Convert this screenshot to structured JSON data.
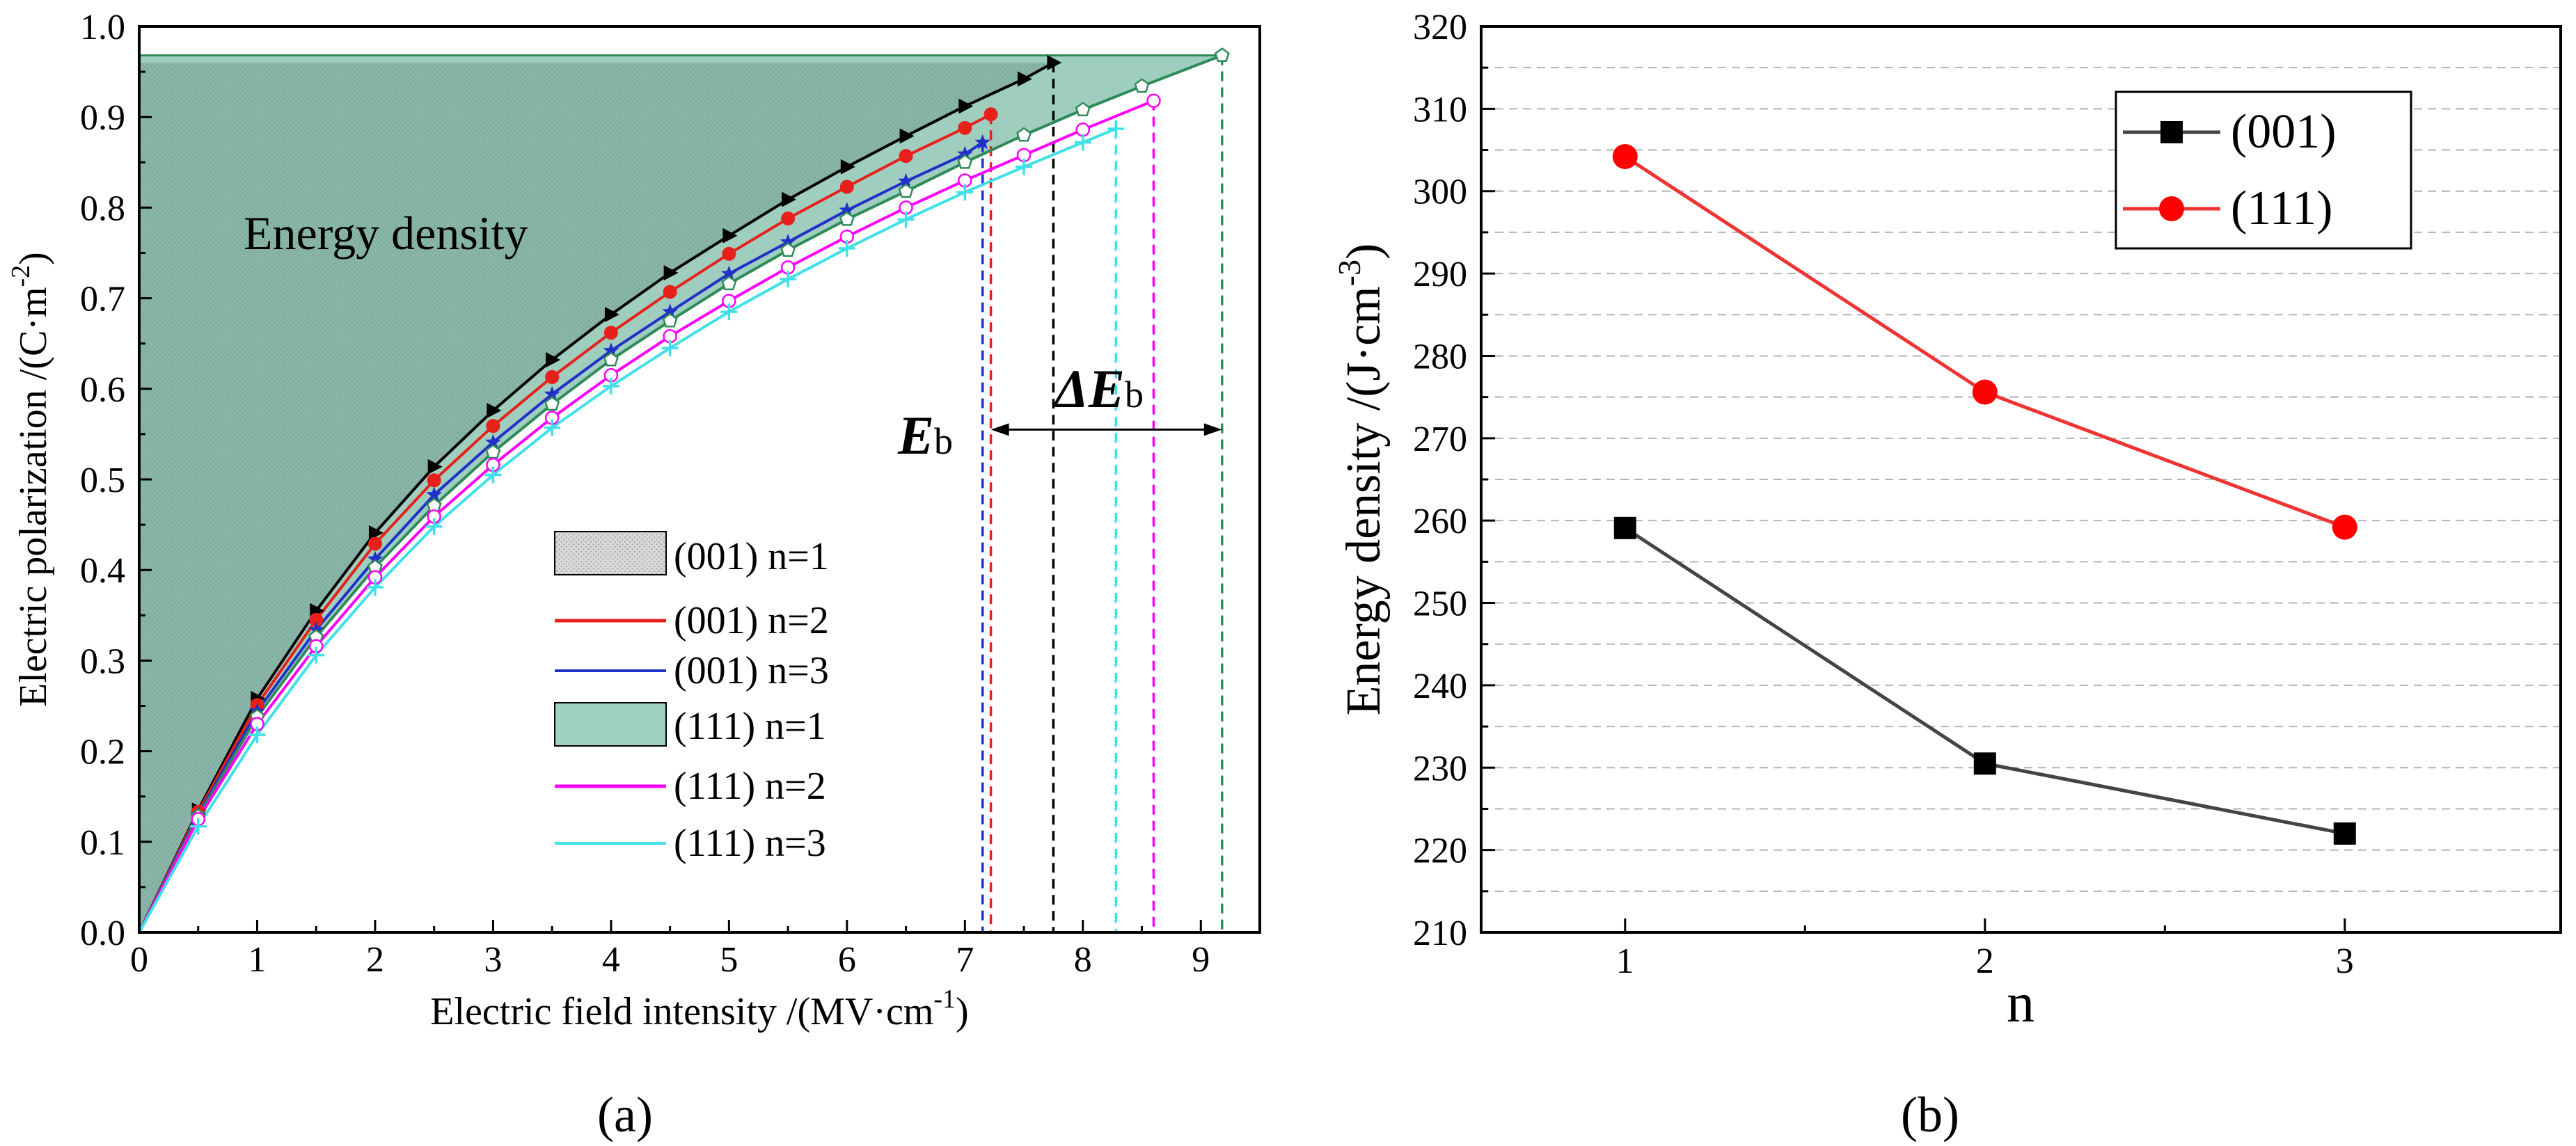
{
  "chart_data": [
    {
      "type": "line",
      "panel_label": "(a)",
      "xlabel": "Electric field intensity /(MV·cm",
      "xlabel_sup": "-1",
      "xlabel_end": ")",
      "ylabel": "Electric polarization /(C·m",
      "ylabel_sup": "-2",
      "ylabel_end": ")",
      "xlim": [
        0,
        9.5
      ],
      "ylim": [
        0.0,
        1.0
      ],
      "xticks": [
        "0",
        "1",
        "2",
        "3",
        "4",
        "5",
        "6",
        "7",
        "8",
        "9"
      ],
      "yticks": [
        "0.0",
        "0.1",
        "0.2",
        "0.3",
        "0.4",
        "0.5",
        "0.6",
        "0.7",
        "0.8",
        "0.9",
        "1.0"
      ],
      "annotations": {
        "energy_density": "Energy density",
        "eb_main": "E",
        "eb_sub": "b",
        "delta_main": "ΔE",
        "delta_sub": "b",
        "delta_from": 7.22,
        "delta_to": 9.18,
        "delta_y": 0.555
      },
      "series": [
        {
          "name": "(001) n=1",
          "color": "#000000",
          "marker": "triangle-right",
          "shaded": "hatched-gray",
          "x": [
            0,
            0.5,
            1,
            1.5,
            2,
            2.5,
            3,
            3.5,
            4,
            4.5,
            5,
            5.5,
            6,
            6.5,
            7,
            7.5
          ],
          "y": [
            0,
            0.135,
            0.258,
            0.355,
            0.441,
            0.514,
            0.576,
            0.632,
            0.682,
            0.728,
            0.769,
            0.809,
            0.845,
            0.879,
            0.912,
            0.942
          ],
          "end_x": 7.75,
          "end_y": 0.96
        },
        {
          "name": "(001) n=2",
          "color": "#e8201c",
          "marker": "circle-filled",
          "x": [
            0,
            0.5,
            1,
            1.5,
            2,
            2.5,
            3,
            3.5,
            4,
            4.5,
            5,
            5.5,
            6,
            6.5,
            7,
            7.22
          ],
          "y": [
            0,
            0.133,
            0.251,
            0.345,
            0.429,
            0.499,
            0.559,
            0.613,
            0.662,
            0.707,
            0.749,
            0.788,
            0.823,
            0.857,
            0.888,
            0.903
          ]
        },
        {
          "name": "(001) n=3",
          "color": "#2030c8",
          "marker": "star",
          "x": [
            0,
            0.5,
            1,
            1.5,
            2,
            2.5,
            3,
            3.5,
            4,
            4.5,
            5,
            5.5,
            6,
            6.5,
            7,
            7.15
          ],
          "y": [
            0,
            0.13,
            0.244,
            0.334,
            0.412,
            0.483,
            0.541,
            0.594,
            0.642,
            0.685,
            0.727,
            0.762,
            0.797,
            0.829,
            0.859,
            0.872
          ]
        },
        {
          "name": "(111) n=1",
          "color": "#2e8b57",
          "marker": "pentagon-open",
          "shaded": "green",
          "x": [
            0,
            0.5,
            1,
            1.5,
            2,
            2.5,
            3,
            3.5,
            4,
            4.5,
            5,
            5.5,
            6,
            6.5,
            7,
            7.5,
            8,
            8.5,
            9.18
          ],
          "y": [
            0,
            0.128,
            0.238,
            0.326,
            0.403,
            0.471,
            0.53,
            0.583,
            0.632,
            0.675,
            0.716,
            0.753,
            0.787,
            0.818,
            0.85,
            0.88,
            0.908,
            0.934,
            0.968
          ]
        },
        {
          "name": "(111) n=2",
          "color": "#ff00ff",
          "marker": "circle-open",
          "x": [
            0,
            0.5,
            1,
            1.5,
            2,
            2.5,
            3,
            3.5,
            4,
            4.5,
            5,
            5.5,
            6,
            6.5,
            7,
            7.5,
            8,
            8.6
          ],
          "y": [
            0,
            0.125,
            0.23,
            0.316,
            0.392,
            0.459,
            0.516,
            0.568,
            0.615,
            0.658,
            0.697,
            0.734,
            0.768,
            0.8,
            0.83,
            0.858,
            0.886,
            0.918
          ]
        },
        {
          "name": "(111) n=3",
          "color": "#40e0e8",
          "marker": "plus",
          "x": [
            0,
            0.5,
            1,
            1.5,
            2,
            2.5,
            3,
            3.5,
            4,
            4.5,
            5,
            5.5,
            6,
            6.5,
            7,
            7.5,
            8,
            8.28
          ],
          "y": [
            0,
            0.117,
            0.218,
            0.306,
            0.381,
            0.448,
            0.505,
            0.557,
            0.603,
            0.645,
            0.685,
            0.721,
            0.755,
            0.787,
            0.817,
            0.845,
            0.872,
            0.887
          ]
        }
      ],
      "dashed_breakdown_lines": [
        {
          "x": 7.15,
          "top": 0.872,
          "color": "#2030c8"
        },
        {
          "x": 7.22,
          "top": 0.903,
          "color": "#e8201c"
        },
        {
          "x": 7.75,
          "top": 0.96,
          "color": "#000000"
        },
        {
          "x": 8.28,
          "top": 0.887,
          "color": "#40e0e8"
        },
        {
          "x": 8.6,
          "top": 0.918,
          "color": "#ff00ff"
        },
        {
          "x": 9.18,
          "top": 0.968,
          "color": "#2e8b57"
        }
      ]
    },
    {
      "type": "line",
      "panel_label": "(b)",
      "xlabel": "n",
      "ylabel": "Energy density /(J·cm",
      "ylabel_sup": "-3",
      "ylabel_end": ")",
      "xlim": [
        0.6,
        3.6
      ],
      "ylim": [
        210,
        320
      ],
      "xticks": [
        "1",
        "2",
        "3"
      ],
      "yticks": [
        "210",
        "220",
        "230",
        "240",
        "250",
        "260",
        "270",
        "280",
        "290",
        "300",
        "310",
        "320"
      ],
      "grid": "dashed-horizontal",
      "legend_position": "top-right",
      "series": [
        {
          "name": "(001)",
          "color": "#000000",
          "line_color": "#444444",
          "marker": "square",
          "x": [
            1,
            2,
            3
          ],
          "values": [
            259.1,
            230.5,
            222.0
          ]
        },
        {
          "name": "(111)",
          "color": "#ff0000",
          "line_color": "#ee3333",
          "marker": "circle",
          "x": [
            1,
            2,
            3
          ],
          "values": [
            304.2,
            275.6,
            259.2
          ]
        }
      ]
    }
  ]
}
